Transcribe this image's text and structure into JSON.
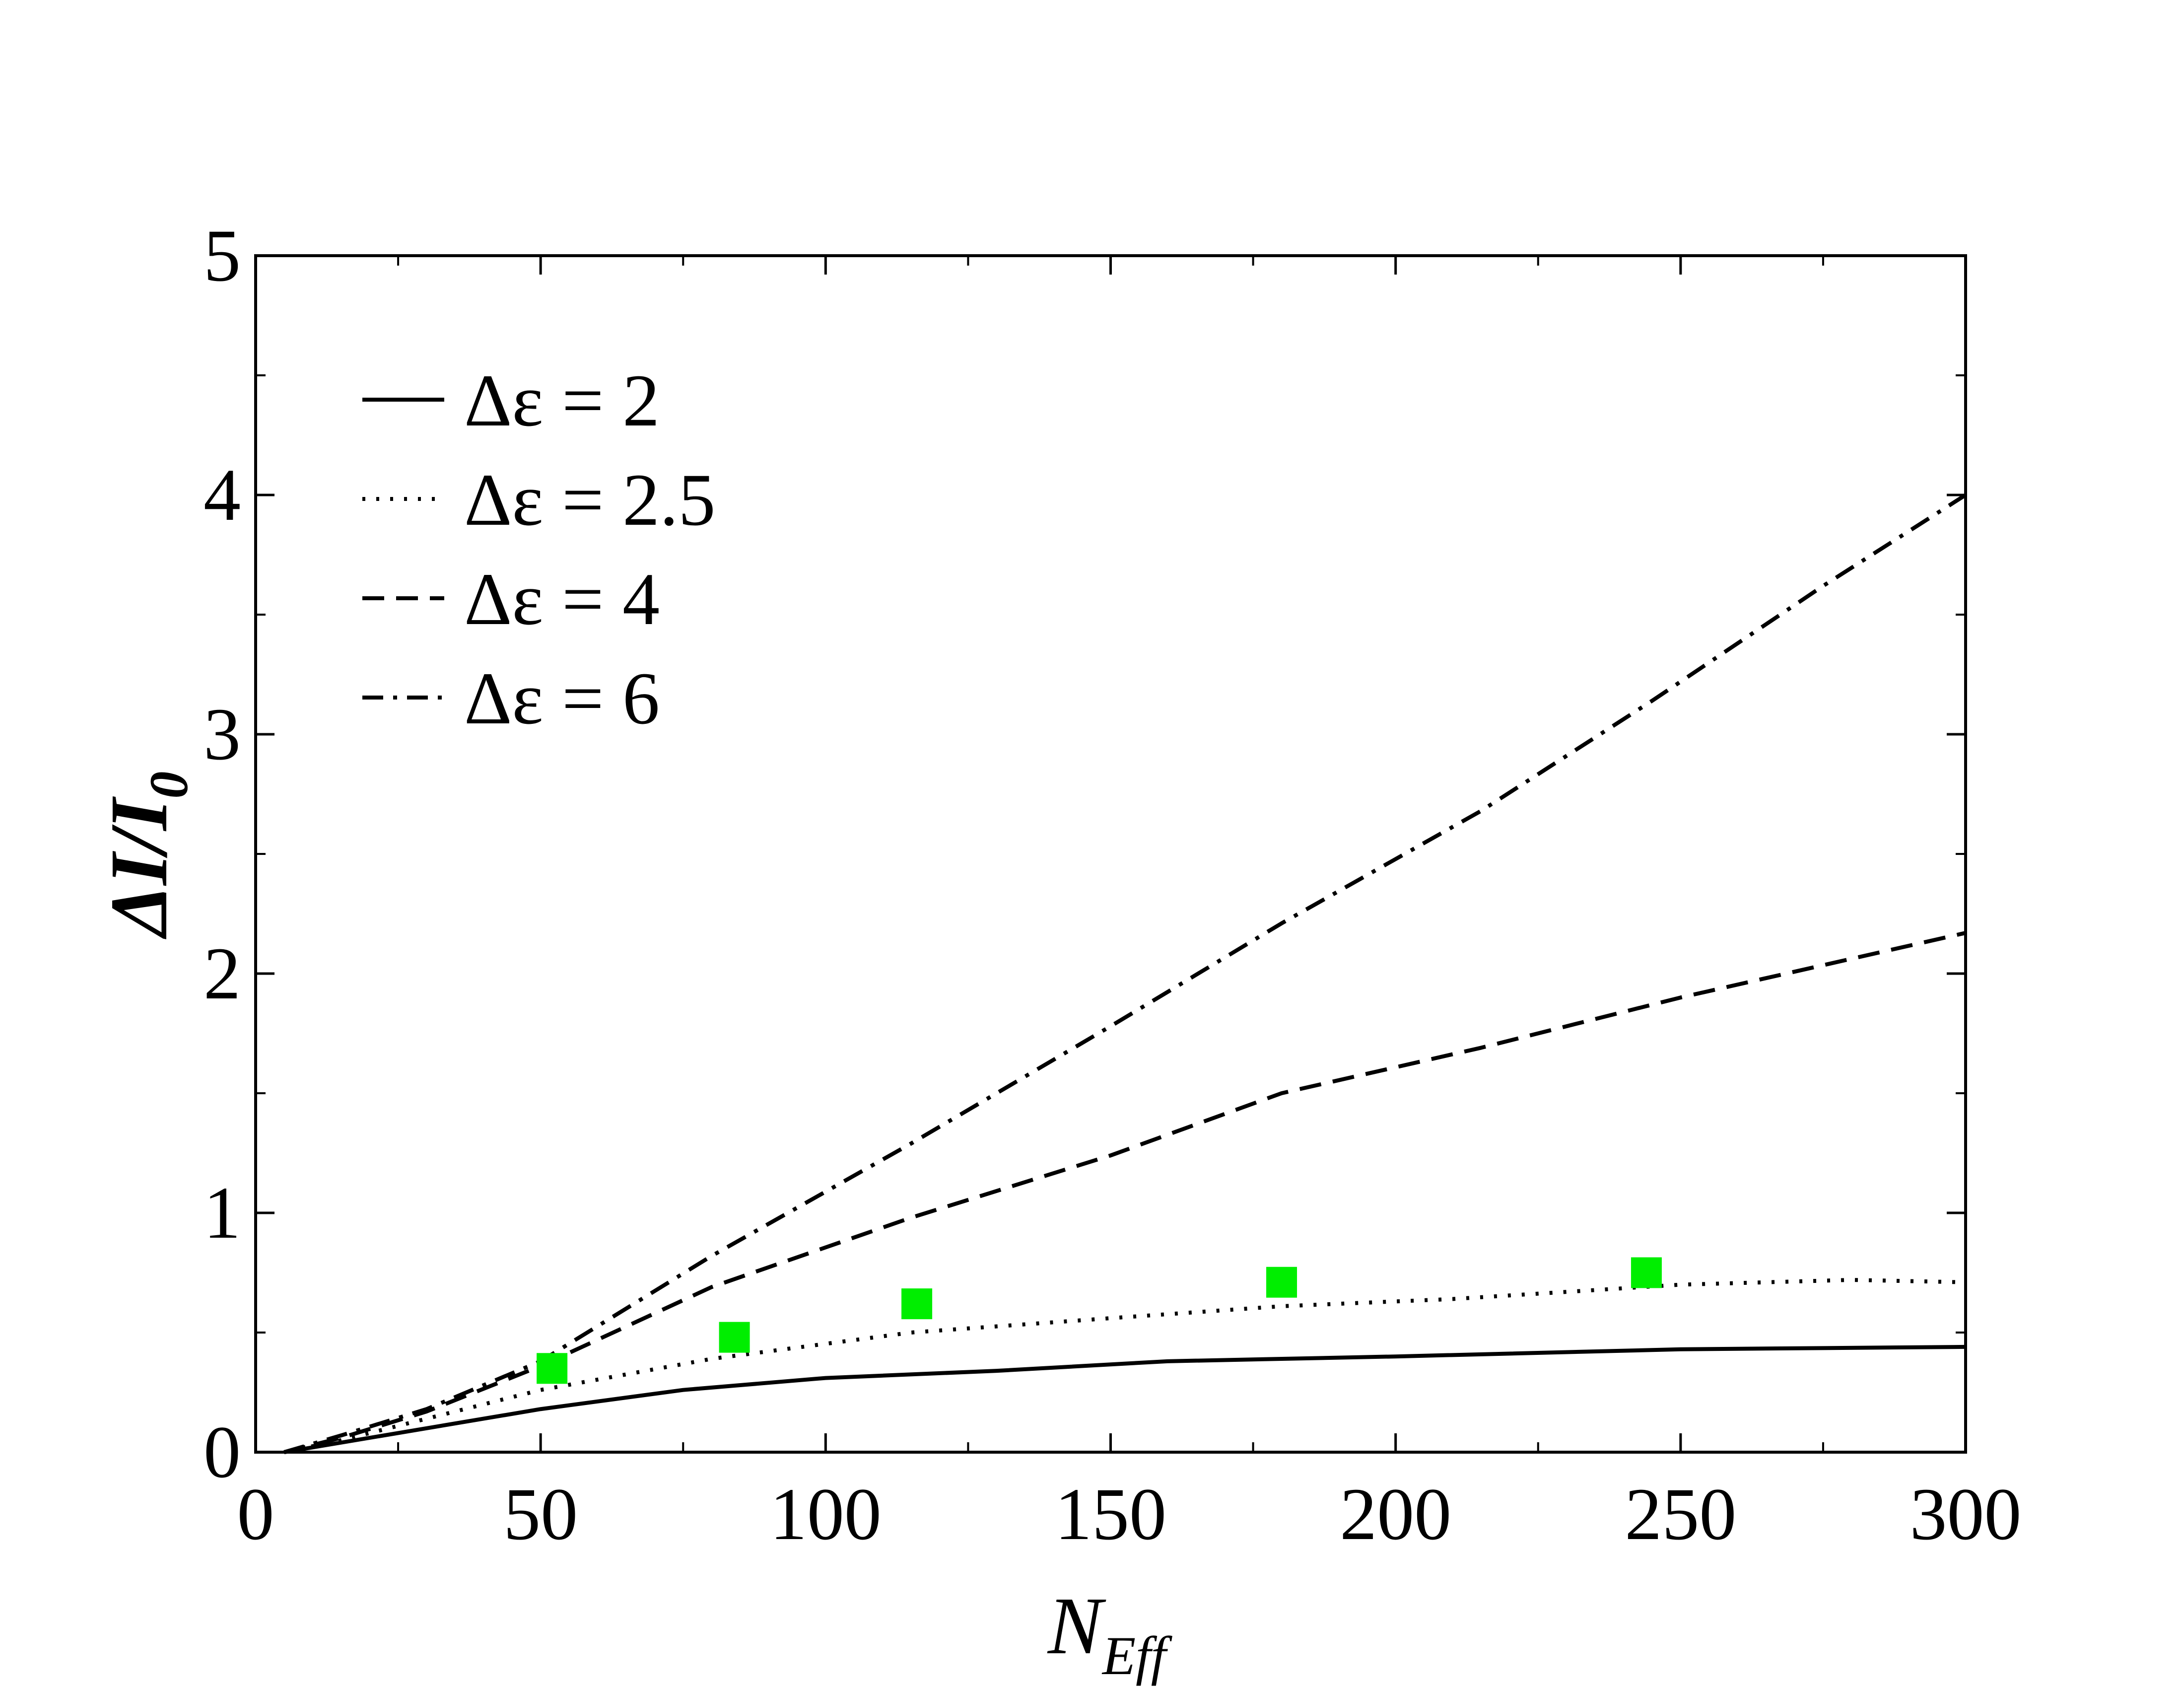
{
  "chart_data": {
    "type": "line",
    "xlabel": {
      "main": "N",
      "sub": "Eff"
    },
    "ylabel": {
      "main": "ΔI/I",
      "sub": "0"
    },
    "xlim": [
      0,
      300
    ],
    "ylim": [
      0,
      5
    ],
    "x_ticks": [
      0,
      50,
      100,
      150,
      200,
      250,
      300
    ],
    "y_ticks": [
      0,
      1,
      2,
      3,
      4,
      5
    ],
    "x_minor_step": 25,
    "y_minor_step": 0.5,
    "grid": false,
    "legend_position": "top-left",
    "series": [
      {
        "name": "Δε = 2",
        "style": "solid",
        "x": [
          5,
          15,
          30,
          50,
          75,
          100,
          130,
          160,
          200,
          250,
          300
        ],
        "y": [
          0,
          0.04,
          0.1,
          0.18,
          0.26,
          0.31,
          0.34,
          0.38,
          0.4,
          0.43,
          0.44
        ]
      },
      {
        "name": "Δε = 2.5",
        "style": "dotted",
        "x": [
          5,
          15,
          30,
          50,
          80,
          115,
          150,
          180,
          210,
          250,
          280,
          300
        ],
        "y": [
          0,
          0.05,
          0.14,
          0.26,
          0.39,
          0.5,
          0.56,
          0.61,
          0.64,
          0.7,
          0.72,
          0.71
        ]
      },
      {
        "name": "Δε = 4",
        "style": "dashed",
        "x": [
          5,
          15,
          30,
          50,
          80,
          115,
          150,
          180,
          215,
          250,
          300
        ],
        "y": [
          0,
          0.06,
          0.17,
          0.36,
          0.69,
          0.98,
          1.24,
          1.5,
          1.69,
          1.9,
          2.17
        ]
      },
      {
        "name": "Δε = 6",
        "style": "dashdot",
        "x": [
          5,
          15,
          30,
          50,
          80,
          115,
          150,
          180,
          215,
          245,
          275,
          300
        ],
        "y": [
          0,
          0.07,
          0.18,
          0.38,
          0.82,
          1.29,
          1.78,
          2.21,
          2.68,
          3.14,
          3.62,
          4.0
        ]
      }
    ],
    "markers": {
      "style": "square",
      "color": "#00ee00",
      "x": [
        52,
        84,
        116,
        180,
        244
      ],
      "y": [
        0.35,
        0.48,
        0.62,
        0.71,
        0.75
      ]
    }
  }
}
